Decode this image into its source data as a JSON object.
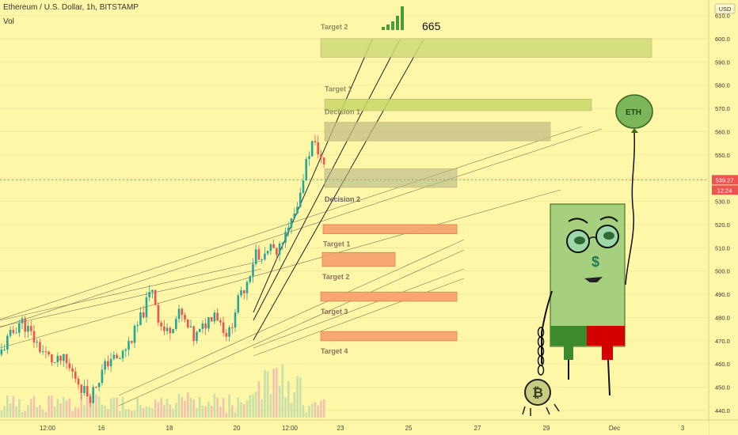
{
  "header": {
    "title": "Ethereum / U.S. Dollar, 1h, BITSTAMP",
    "volume_label": "Vol"
  },
  "currency_label": "USD",
  "price_tag": {
    "value": "539.27",
    "countdown": "12:24"
  },
  "signal_value": "665",
  "balloon_label": "ETH",
  "coin_symbol": "₿",
  "colors": {
    "background": "#fff7a8",
    "up": "#26a69a",
    "down": "#ef5350",
    "volume_up": "#c9dfa8",
    "volume_down": "#f0c3b0",
    "price_line": "#ef5350",
    "target_up": "#cdd86a",
    "decision": "#c8c87a",
    "target_down": "#f7a06a",
    "mascot_body": "#a6d07e",
    "mascot_green": "#3c8a2e",
    "mascot_red": "#d40000"
  },
  "chart_data": {
    "type": "candlestick",
    "title": "Ethereum / U.S. Dollar, 1h, BITSTAMP",
    "ylim": [
      436,
      615
    ],
    "y_ticks": [
      440,
      450,
      460,
      470,
      480,
      490,
      500,
      510,
      520,
      530,
      540,
      550,
      560,
      570,
      580,
      590,
      600,
      610
    ],
    "x_tick_labels": [
      "12:00",
      "16",
      "18",
      "20",
      "12:00",
      "23",
      "25",
      "27",
      "29",
      "Dec",
      "3"
    ],
    "last_price": 539.27,
    "price_path": [
      464,
      470,
      474,
      479,
      475,
      470,
      466,
      463,
      460,
      462,
      458,
      454,
      449,
      446,
      452,
      458,
      463,
      461,
      466,
      471,
      477,
      485,
      493,
      478,
      473,
      478,
      482,
      476,
      471,
      474,
      479,
      483,
      477,
      472,
      484,
      491,
      499,
      509,
      504,
      510,
      507,
      514,
      519,
      528,
      544,
      555,
      552,
      542
    ],
    "zones": [
      {
        "label": "Target 2",
        "low": 592,
        "high": 600,
        "kind": "target_up"
      },
      {
        "label": "Target 1",
        "low": 569,
        "high": 574,
        "kind": "target_up"
      },
      {
        "label": "Decision 1",
        "low": 556,
        "high": 564,
        "kind": "decision"
      },
      {
        "label": "Decision 2",
        "low": 536,
        "high": 544,
        "kind": "decision"
      },
      {
        "label": "Target 1",
        "low": 516,
        "high": 520,
        "kind": "target_down"
      },
      {
        "label": "Target 2",
        "low": 502,
        "high": 508,
        "kind": "target_down"
      },
      {
        "label": "Target 3",
        "low": 487,
        "high": 491,
        "kind": "target_down"
      },
      {
        "label": "Target 4",
        "low": 470,
        "high": 474,
        "kind": "target_down"
      }
    ]
  }
}
